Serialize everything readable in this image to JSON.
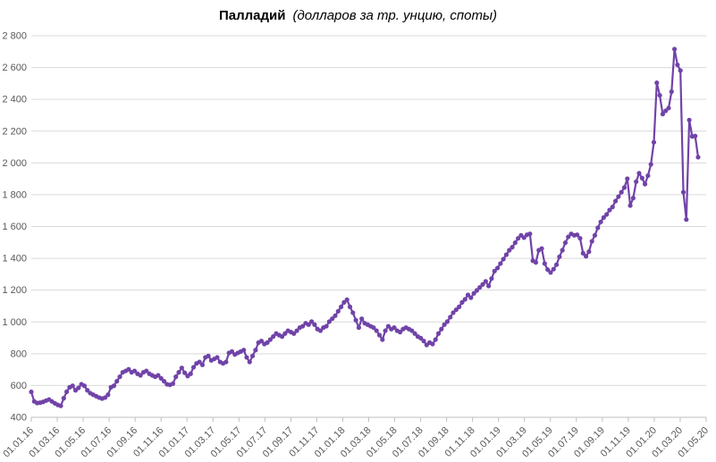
{
  "chart_data": {
    "type": "line",
    "title": "Палладий",
    "subtitle": "(долларов за тр. унцию, споты)",
    "grid": "horizontal",
    "legend": "none",
    "marker": "circle",
    "series_color": "#7143A8",
    "gridline_color": "#D9D9D9",
    "axis_color": "#BFBFBF",
    "tick_label_color": "#595959",
    "background_color": "#FFFFFF",
    "ylim": [
      400,
      2800
    ],
    "ytick_step": 200,
    "ytick_labels": [
      "400",
      "600",
      "800",
      "1 000",
      "1 200",
      "1 400",
      "1 600",
      "1 800",
      "2 000",
      "2 200",
      "2 400",
      "2 600",
      "2 800"
    ],
    "x_tick_labels": [
      "01.01.16",
      "01.03.16",
      "01.05.16",
      "01.07.16",
      "01.09.16",
      "01.11.16",
      "01.01.17",
      "01.03.17",
      "01.05.17",
      "01.07.17",
      "01.09.17",
      "01.11.17",
      "01.01.18",
      "01.03.18",
      "01.05.18",
      "01.07.18",
      "01.09.18",
      "01.11.18",
      "01.01.19",
      "01.03.19",
      "01.05.19",
      "01.07.19",
      "01.09.19",
      "01.11.19",
      "01.01.20",
      "01.03.20",
      "01.05.20"
    ],
    "x_frequency": "weekly",
    "values": [
      560,
      500,
      490,
      492,
      497,
      505,
      512,
      500,
      488,
      478,
      472,
      520,
      561,
      589,
      598,
      570,
      585,
      608,
      598,
      570,
      552,
      542,
      533,
      524,
      518,
      524,
      542,
      589,
      598,
      627,
      655,
      683,
      692,
      702,
      683,
      692,
      674,
      664,
      683,
      692,
      674,
      664,
      655,
      664,
      645,
      627,
      608,
      604,
      612,
      655,
      683,
      711,
      680,
      660,
      674,
      715,
      739,
      748,
      730,
      777,
      786,
      758,
      767,
      777,
      748,
      739,
      748,
      805,
      814,
      795,
      805,
      814,
      823,
      777,
      748,
      786,
      823,
      870,
      880,
      861,
      870,
      889,
      908,
      927,
      917,
      908,
      927,
      945,
      936,
      927,
      945,
      964,
      973,
      992,
      983,
      1002,
      983,
      955,
      945,
      964,
      973,
      1002,
      1020,
      1039,
      1067,
      1095,
      1123,
      1140,
      1095,
      1058,
      1011,
      964,
      1020,
      992,
      983,
      973,
      964,
      945,
      917,
      889,
      945,
      973,
      955,
      964,
      945,
      936,
      955,
      964,
      955,
      945,
      927,
      908,
      898,
      880,
      855,
      870,
      861,
      889,
      927,
      955,
      983,
      1002,
      1030,
      1058,
      1077,
      1095,
      1123,
      1142,
      1170,
      1152,
      1180,
      1198,
      1217,
      1236,
      1255,
      1226,
      1273,
      1320,
      1339,
      1367,
      1395,
      1423,
      1451,
      1470,
      1498,
      1526,
      1545,
      1530,
      1548,
      1554,
      1385,
      1374,
      1451,
      1462,
      1367,
      1329,
      1311,
      1332,
      1360,
      1410,
      1451,
      1498,
      1535,
      1554,
      1545,
      1548,
      1526,
      1432,
      1413,
      1442,
      1507,
      1545,
      1592,
      1629,
      1657,
      1676,
      1704,
      1723,
      1760,
      1788,
      1816,
      1845,
      1901,
      1732,
      1779,
      1882,
      1935,
      1905,
      1867,
      1920,
      1991,
      2130,
      2504,
      2425,
      2307,
      2328,
      2345,
      2448,
      2716,
      2617,
      2581,
      1816,
      1644,
      2270,
      2167,
      2169,
      2036
    ]
  }
}
